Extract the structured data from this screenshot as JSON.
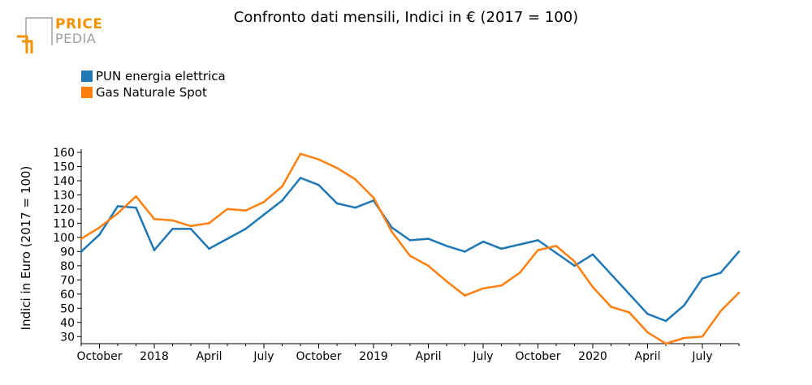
{
  "logo": {
    "line1": "PRICE",
    "line2": "PEDIA"
  },
  "colors": {
    "pun": "#1f77b4",
    "gas": "#ff7f0e",
    "logo_orange": "#f39200",
    "logo_gray": "#a0a0a0"
  },
  "chart_data": {
    "type": "line",
    "title": "Confronto dati mensili, Indici in € (2017 = 100)",
    "ylabel": "Indici in Euro (2017 = 100)",
    "xlabel": "",
    "ylim": [
      25,
      160
    ],
    "yticks": [
      30,
      40,
      50,
      60,
      70,
      80,
      90,
      100,
      110,
      120,
      130,
      140,
      150,
      160
    ],
    "x": [
      "2017-09",
      "2017-10",
      "2017-11",
      "2017-12",
      "2018-01",
      "2018-02",
      "2018-03",
      "2018-04",
      "2018-05",
      "2018-06",
      "2018-07",
      "2018-08",
      "2018-09",
      "2018-10",
      "2018-11",
      "2018-12",
      "2019-01",
      "2019-02",
      "2019-03",
      "2019-04",
      "2019-05",
      "2019-06",
      "2019-07",
      "2019-08",
      "2019-09",
      "2019-10",
      "2019-11",
      "2019-12",
      "2020-01",
      "2020-02",
      "2020-03",
      "2020-04",
      "2020-05",
      "2020-06",
      "2020-07",
      "2020-08",
      "2020-09"
    ],
    "xticks": [
      {
        "x": "2017-10",
        "label": "October"
      },
      {
        "x": "2018-01",
        "label": "2018"
      },
      {
        "x": "2018-04",
        "label": "April"
      },
      {
        "x": "2018-07",
        "label": "July"
      },
      {
        "x": "2018-10",
        "label": "October"
      },
      {
        "x": "2019-01",
        "label": "2019"
      },
      {
        "x": "2019-04",
        "label": "April"
      },
      {
        "x": "2019-07",
        "label": "July"
      },
      {
        "x": "2019-10",
        "label": "October"
      },
      {
        "x": "2020-01",
        "label": "2020"
      },
      {
        "x": "2020-04",
        "label": "April"
      },
      {
        "x": "2020-07",
        "label": "July"
      }
    ],
    "series": [
      {
        "name": "PUN energia elettrica",
        "values": [
          90,
          102,
          122,
          121,
          91,
          106,
          106,
          92,
          99,
          106,
          116,
          126,
          142,
          137,
          124,
          121,
          126,
          107,
          98,
          99,
          94,
          90,
          97,
          92,
          95,
          98,
          89,
          80,
          88,
          74,
          60,
          46,
          41,
          52,
          71,
          75,
          90
        ]
      },
      {
        "name": "Gas Naturale Spot",
        "values": [
          99,
          107,
          117,
          129,
          113,
          112,
          108,
          110,
          120,
          119,
          125,
          136,
          159,
          155,
          149,
          141,
          128,
          104,
          87,
          80,
          69,
          59,
          64,
          66,
          75,
          91,
          94,
          83,
          65,
          51,
          47,
          33,
          25,
          29,
          30,
          48,
          61
        ]
      }
    ],
    "legend_position": "top-left",
    "grid": false
  }
}
